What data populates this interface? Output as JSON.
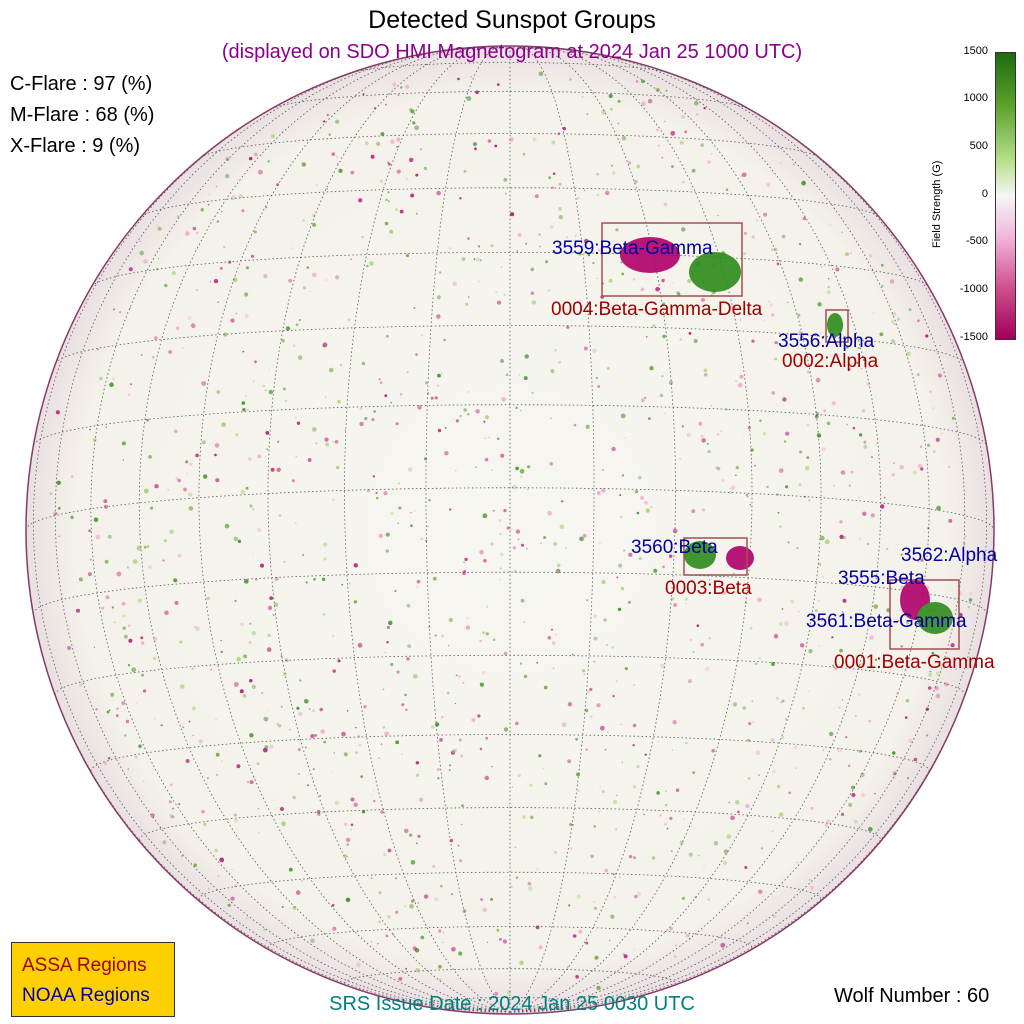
{
  "header": {
    "title": "Detected Sunspot Groups",
    "subtitle": "(displayed on SDO HMI Magnetogram at 2024 Jan 25 1000 UTC)"
  },
  "flares": {
    "c": "C-Flare : 97 (%)",
    "m": "M-Flare : 68 (%)",
    "x": "X-Flare :  9 (%)"
  },
  "regions": {
    "noaa_3559": "3559:Beta-Gamma",
    "assa_0004": "0004:Beta-Gamma-Delta",
    "noaa_3556": "3556:Alpha",
    "assa_0002": "0002:Alpha",
    "noaa_3560": "3560:Beta",
    "assa_0003": "0003:Beta",
    "noaa_3562": "3562:Alpha",
    "noaa_3555": "3555:Beta",
    "noaa_3561": "3561:Beta-Gamma",
    "assa_0001": "0001:Beta-Gamma"
  },
  "colorbar": {
    "label": "Field Strength (G)",
    "ticks": [
      "1500",
      "1000",
      "500",
      "0",
      "-500",
      "-1000",
      "-1500"
    ]
  },
  "legend": {
    "assa": "ASSA Regions",
    "noaa": "NOAA Regions"
  },
  "footer": {
    "srs": "SRS Issue Date : 2024 Jan 25 0030 UTC",
    "wolf": "Wolf Number : 60"
  },
  "colors": {
    "assa": "#a00000",
    "noaa": "#0000a0",
    "positive": "#2e8b1a",
    "negative": "#b0006a"
  }
}
